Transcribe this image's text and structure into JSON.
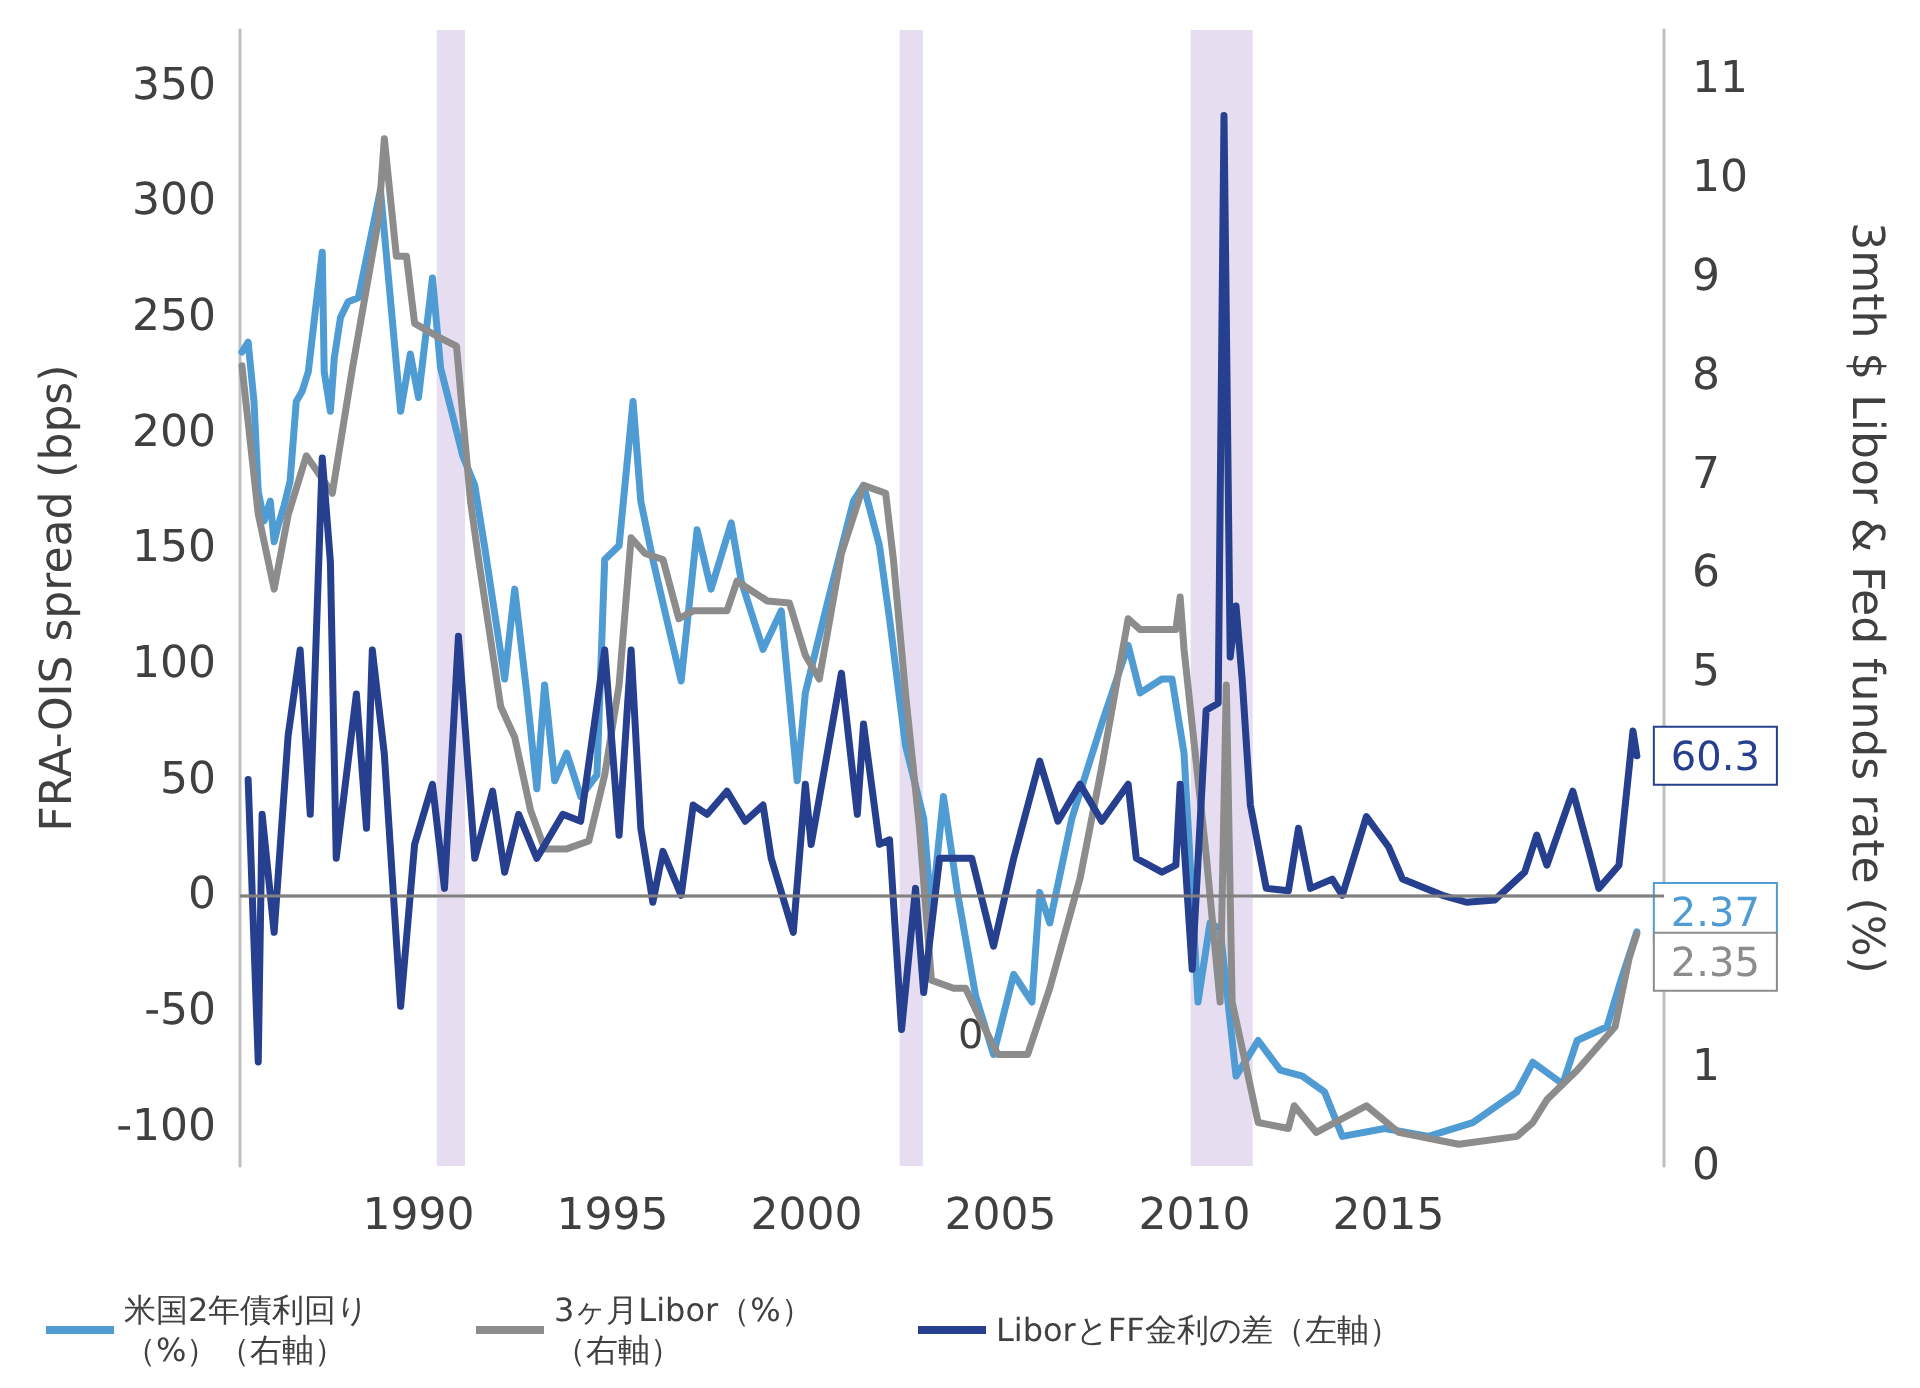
{
  "chart_data": {
    "type": "line",
    "ylabel": "FRA-OIS spread (bps)",
    "y2label": "3mth $ Libor & Fed funds rate (%)",
    "xlim": [
      1985.4,
      2022.1
    ],
    "xticks": [
      1990,
      1995,
      2000,
      2005,
      2010,
      2015
    ],
    "ylim": [
      -117,
      374
    ],
    "yticks": [
      -100,
      -50,
      0,
      50,
      100,
      150,
      200,
      250,
      300,
      350
    ],
    "y2lim": [
      0,
      11.5
    ],
    "y2ticks": [
      0,
      1,
      5,
      6,
      7,
      8,
      9,
      10,
      11
    ],
    "grid": false,
    "legend": "bottom",
    "bands": [
      {
        "axis": "x",
        "from": 1990.47,
        "to": 1991.2,
        "color": "#e6def0"
      },
      {
        "axis": "x",
        "from": 2002.4,
        "to": 2003.0,
        "color": "#e6def0"
      },
      {
        "axis": "x",
        "from": 2009.9,
        "to": 2011.5,
        "color": "#e6def0"
      }
    ],
    "ref_lines": [
      {
        "axis": "y",
        "value": 0,
        "color": "#808080"
      }
    ],
    "annotations": [
      "0"
    ],
    "series": [
      {
        "name": "米国2年債利回り（%）（右軸）",
        "color": "#4f9bd4",
        "axis": "y2",
        "x": [
          1985.45,
          1985.61,
          1985.76,
          1985.87,
          1986.02,
          1986.18,
          1986.28,
          1986.38,
          1986.54,
          1986.69,
          1986.85,
          1987.0,
          1987.16,
          1987.31,
          1987.52,
          1987.57,
          1987.73,
          1987.83,
          1987.99,
          1988.19,
          1988.45,
          1989.02,
          1989.54,
          1989.79,
          1990.0,
          1990.36,
          1990.57,
          1991.14,
          1991.45,
          1991.7,
          1992.22,
          1992.48,
          1992.79,
          1993.05,
          1993.25,
          1993.51,
          1993.82,
          1994.18,
          1994.6,
          1994.8,
          1995.17,
          1995.53,
          1995.73,
          1996.04,
          1996.3,
          1996.77,
          1997.18,
          1997.54,
          1998.06,
          1998.32,
          1998.88,
          1999.35,
          1999.76,
          1999.97,
          2000.54,
          2001.21,
          2001.47,
          2001.88,
          2002.14,
          2002.55,
          2003.02,
          2003.22,
          2003.53,
          2003.89,
          2004.36,
          2004.82,
          2005.34,
          2005.81,
          2006.01,
          2006.27,
          2006.84,
          2007.61,
          2008.29,
          2008.6,
          2009.16,
          2009.42,
          2009.73,
          2010.09,
          2010.4,
          2010.66,
          2011.07,
          2011.64,
          2012.21,
          2012.78,
          2013.35,
          2013.81,
          2014.9,
          2016.03,
          2017.17,
          2018.31,
          2018.72,
          2019.49,
          2019.86,
          2020.63,
          2020.99,
          2021.4
        ],
        "values": [
          8.24,
          8.34,
          7.74,
          6.83,
          6.53,
          6.73,
          6.32,
          6.48,
          6.69,
          6.93,
          7.74,
          7.84,
          8.04,
          8.55,
          9.25,
          8.04,
          7.64,
          8.18,
          8.59,
          8.75,
          8.79,
          9.88,
          7.64,
          8.22,
          7.78,
          8.99,
          8.08,
          7.19,
          6.89,
          6.28,
          4.93,
          5.84,
          4.79,
          3.82,
          4.87,
          3.9,
          4.18,
          3.74,
          3.96,
          6.14,
          6.28,
          7.74,
          6.73,
          6.14,
          5.7,
          4.91,
          6.44,
          5.84,
          6.51,
          5.92,
          5.23,
          5.62,
          3.9,
          4.79,
          5.7,
          6.73,
          6.89,
          6.28,
          5.54,
          4.26,
          3.52,
          2.55,
          3.74,
          2.77,
          1.72,
          1.13,
          1.94,
          1.66,
          2.77,
          2.46,
          3.52,
          4.48,
          5.27,
          4.79,
          4.93,
          4.93,
          4.18,
          1.66,
          2.46,
          2.4,
          0.91,
          1.27,
          0.97,
          0.91,
          0.75,
          0.3,
          0.38,
          0.3,
          0.44,
          0.75,
          1.05,
          0.83,
          1.27,
          1.41,
          1.88,
          2.37
        ],
        "value_labels": [
          null,
          null,
          null,
          null,
          null,
          null,
          null,
          null,
          null,
          null,
          null,
          null,
          null,
          null,
          null,
          null,
          null,
          null,
          null,
          null,
          null,
          null,
          null,
          null,
          null,
          null,
          null,
          null,
          null,
          null,
          null,
          null,
          null,
          null,
          null,
          null,
          null,
          null,
          null,
          null,
          null,
          null,
          null,
          null,
          null,
          null,
          null,
          null,
          null,
          null,
          null,
          null,
          null,
          null,
          null,
          null,
          null,
          null,
          null,
          null,
          null,
          null,
          null,
          null,
          null,
          null,
          null,
          null,
          null,
          null,
          null,
          null,
          null,
          null,
          null,
          null,
          null,
          null,
          null,
          null,
          null,
          null,
          null,
          null,
          null,
          null,
          null,
          null,
          null,
          null,
          null,
          null,
          null,
          null,
          null,
          "2.37"
        ]
      },
      {
        "name": "3ヶ月Libor（%）（右軸）",
        "color": "#8c8c8c",
        "axis": "y2",
        "x": [
          1985.45,
          1985.87,
          1986.28,
          1986.64,
          1987.11,
          1987.78,
          1988.3,
          1988.97,
          1989.12,
          1989.43,
          1989.69,
          1989.9,
          1990.57,
          1990.98,
          1991.34,
          1991.55,
          1992.12,
          1992.48,
          1992.89,
          1993.25,
          1993.82,
          1994.39,
          1994.8,
          1995.17,
          1995.48,
          1995.84,
          1996.3,
          1996.71,
          1997.08,
          1997.95,
          1998.21,
          1998.99,
          1999.56,
          1999.97,
          2000.33,
          2000.9,
          2001.47,
          2002.04,
          2002.24,
          2002.55,
          2002.91,
          2003.22,
          2003.79,
          2004.1,
          2004.57,
          2004.93,
          2005.7,
          2006.27,
          2007.05,
          2007.61,
          2008.29,
          2008.6,
          2009.52,
          2009.63,
          2009.73,
          2010.3,
          2010.66,
          2010.82,
          2010.97,
          2011.23,
          2011.64,
          2012.42,
          2012.57,
          2013.14,
          2014.43,
          2015.26,
          2016.81,
          2018.31,
          2018.72,
          2019.08,
          2019.86,
          2020.84,
          2021.2,
          2021.4
        ],
        "values": [
          8.1,
          6.6,
          5.84,
          6.59,
          7.19,
          6.81,
          8.08,
          9.58,
          10.4,
          9.21,
          9.21,
          8.53,
          8.38,
          8.3,
          6.73,
          6.14,
          4.65,
          4.34,
          3.6,
          3.21,
          3.21,
          3.29,
          3.96,
          4.87,
          6.36,
          6.2,
          6.14,
          5.54,
          5.62,
          5.62,
          5.92,
          5.72,
          5.7,
          5.17,
          4.93,
          6.2,
          6.89,
          6.81,
          6.14,
          4.79,
          3.43,
          1.88,
          1.8,
          1.8,
          1.41,
          1.13,
          1.13,
          1.8,
          2.91,
          4.04,
          5.54,
          5.43,
          5.43,
          5.76,
          5.23,
          3.15,
          1.66,
          4.87,
          1.66,
          1.19,
          0.44,
          0.38,
          0.61,
          0.34,
          0.61,
          0.34,
          0.22,
          0.3,
          0.44,
          0.67,
          0.97,
          1.41,
          2.1,
          2.35
        ],
        "value_labels": [
          null,
          null,
          null,
          null,
          null,
          null,
          null,
          null,
          null,
          null,
          null,
          null,
          null,
          null,
          null,
          null,
          null,
          null,
          null,
          null,
          null,
          null,
          null,
          null,
          null,
          null,
          null,
          null,
          null,
          null,
          null,
          null,
          null,
          null,
          null,
          null,
          null,
          null,
          null,
          null,
          null,
          null,
          null,
          null,
          null,
          null,
          null,
          null,
          null,
          null,
          null,
          null,
          null,
          null,
          null,
          null,
          null,
          null,
          null,
          null,
          null,
          null,
          null,
          null,
          null,
          null,
          null,
          null,
          null,
          null,
          null,
          null,
          null,
          "2.35"
        ]
      },
      {
        "name": "LiborとFF金利の差（左軸）",
        "color": "#263f8f",
        "x": [
          1985.61,
          1985.87,
          1985.97,
          1986.28,
          1986.64,
          1986.95,
          1987.21,
          1987.52,
          1987.73,
          1987.88,
          1988.4,
          1988.66,
          1988.81,
          1989.12,
          1989.54,
          1989.9,
          1990.36,
          1990.67,
          1991.03,
          1991.45,
          1991.91,
          1992.22,
          1992.58,
          1993.05,
          1993.72,
          1994.18,
          1994.8,
          1995.17,
          1995.48,
          1995.73,
          1996.04,
          1996.3,
          1996.77,
          1997.08,
          1997.44,
          1997.95,
          1998.42,
          1998.88,
          1999.09,
          1999.66,
          1999.97,
          2000.12,
          2000.9,
          2001.31,
          2001.47,
          2001.88,
          2002.14,
          2002.45,
          2002.81,
          2003.02,
          2003.43,
          2004.26,
          2004.82,
          2005.34,
          2006.01,
          2006.48,
          2007.05,
          2007.61,
          2008.29,
          2008.5,
          2009.16,
          2009.52,
          2009.63,
          2009.94,
          2010.3,
          2010.61,
          2010.76,
          2010.92,
          2011.07,
          2011.23,
          2011.44,
          2011.85,
          2012.42,
          2012.68,
          2012.99,
          2013.55,
          2013.81,
          2014.43,
          2015.0,
          2015.36,
          2016.39,
          2017.01,
          2017.74,
          2018.51,
          2018.82,
          2019.08,
          2019.75,
          2020.17,
          2020.42,
          2020.94,
          2021.3,
          2021.4
        ],
        "values": [
          50,
          -72,
          35,
          -16,
          69,
          106,
          35,
          189,
          144,
          16,
          87,
          29,
          106,
          61,
          -48,
          22,
          48,
          3,
          112,
          16,
          45,
          10,
          35,
          16,
          35,
          32,
          106,
          26,
          106,
          29,
          -3,
          19,
          0,
          39,
          35,
          45,
          32,
          39,
          16,
          -16,
          48,
          22,
          96,
          35,
          74,
          22,
          24,
          -58,
          3,
          -42,
          16,
          16,
          -22,
          16,
          58,
          32,
          48,
          32,
          48,
          16,
          10,
          13,
          48,
          -32,
          80,
          83,
          337,
          103,
          125,
          93,
          39,
          3,
          2,
          29,
          3,
          7,
          0,
          34,
          21,
          7,
          0,
          -3,
          -2,
          10,
          26,
          13,
          45,
          19,
          3,
          13,
          71,
          60.3
        ],
        "value_labels": [
          null,
          null,
          null,
          null,
          null,
          null,
          null,
          null,
          null,
          null,
          null,
          null,
          null,
          null,
          null,
          null,
          null,
          null,
          null,
          null,
          null,
          null,
          null,
          null,
          null,
          null,
          null,
          null,
          null,
          null,
          null,
          null,
          null,
          null,
          null,
          null,
          null,
          null,
          null,
          null,
          null,
          null,
          null,
          null,
          null,
          null,
          null,
          null,
          null,
          null,
          null,
          null,
          null,
          null,
          null,
          null,
          null,
          null,
          null,
          null,
          null,
          null,
          null,
          null,
          null,
          null,
          null,
          null,
          null,
          null,
          null,
          null,
          null,
          null,
          null,
          null,
          null,
          null,
          null,
          null,
          null,
          null,
          null,
          null,
          null,
          null,
          null,
          null,
          null,
          null,
          null,
          "60.3"
        ]
      }
    ]
  }
}
